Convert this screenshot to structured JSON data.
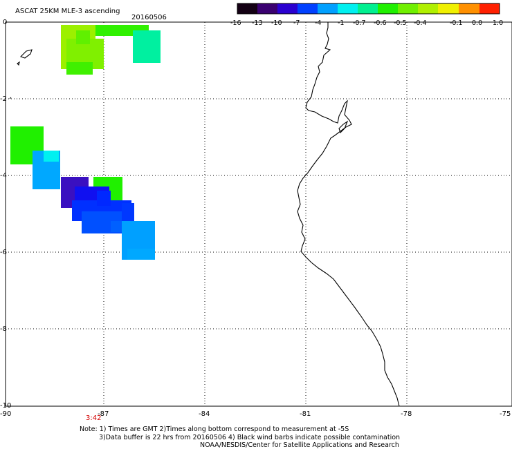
{
  "header": {
    "title": "ASCAT 25KM MLE-3 ascending",
    "date": "20160506"
  },
  "colorbar": {
    "labels": [
      "-16",
      "-13",
      "-10",
      "-7",
      "-4",
      "-1",
      "-0.7",
      "-0.6",
      "-0.5",
      "-0.4",
      "-0.1",
      "0.0",
      "1.0"
    ]
  },
  "axes": {
    "y_labels": [
      "0",
      "-2",
      "-4",
      "-6",
      "-8",
      "-10"
    ],
    "x_labels": [
      "-90",
      "-87",
      "-84",
      "-81",
      "-78",
      "-75"
    ]
  },
  "times": [
    "3:42"
  ],
  "notes": {
    "line1": "Note: 1) Times are GMT 2)Times along bottom correspond to measurement at -5S",
    "line2": "3)Data buffer is 22 hrs from 20160506 4) Black wind barbs indicate possible contamination",
    "line3": "NOAA/NESDIS/Center for Satellite Applications and Research"
  }
}
